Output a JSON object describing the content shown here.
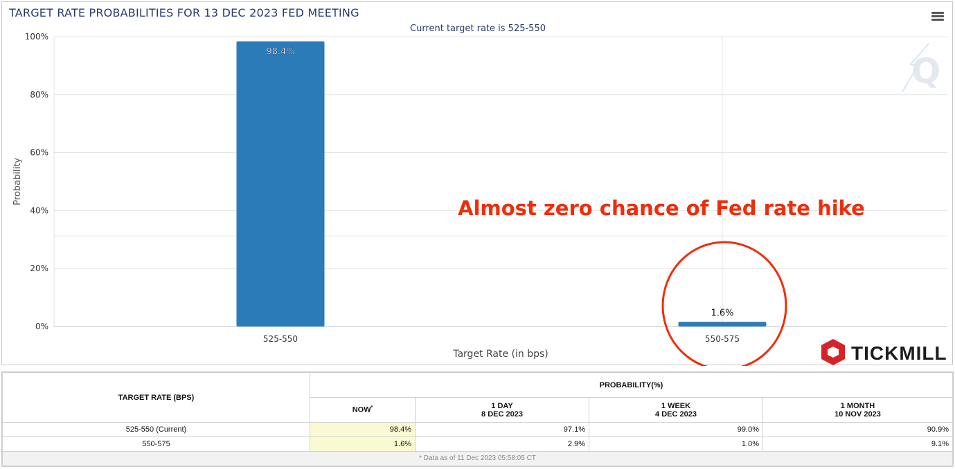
{
  "chart": {
    "title": "TARGET RATE PROBABILITIES FOR 13 DEC 2023 FED MEETING",
    "subtitle": "Current target rate is 525-550",
    "annotation": "Almost zero chance of Fed rate hike",
    "brand": "TICKMILL",
    "watermark": "Q",
    "colors": {
      "bar": "#2b7bb9",
      "annotation": "#f02d0a",
      "title": "#2a3b6e",
      "now_highlight": "#fafad2"
    }
  },
  "chart_data": {
    "type": "bar",
    "categories": [
      "525-550",
      "550-575"
    ],
    "values": [
      98.4,
      1.6
    ],
    "data_labels": [
      "98.4%",
      "1.6%"
    ],
    "title": "TARGET RATE PROBABILITIES FOR 13 DEC 2023 FED MEETING",
    "subtitle": "Current target rate is 525-550",
    "xlabel": "Target Rate (in bps)",
    "ylabel": "Probability",
    "ylim": [
      0,
      100
    ],
    "yticks": [
      "0%",
      "20%",
      "40%",
      "60%",
      "80%",
      "100%"
    ],
    "grid": true
  },
  "table": {
    "header_target": "TARGET RATE (BPS)",
    "header_prob": "PROBABILITY(%)",
    "columns": [
      {
        "line1": "NOW",
        "line2": "",
        "sup": "*"
      },
      {
        "line1": "1 DAY",
        "line2": "8 DEC 2023",
        "sup": ""
      },
      {
        "line1": "1 WEEK",
        "line2": "4 DEC 2023",
        "sup": ""
      },
      {
        "line1": "1 MONTH",
        "line2": "10 NOV 2023",
        "sup": ""
      }
    ],
    "rows": [
      {
        "rate": "525-550 (Current)",
        "values": [
          "98.4%",
          "97.1%",
          "99.0%",
          "90.9%"
        ]
      },
      {
        "rate": "550-575",
        "values": [
          "1.6%",
          "2.9%",
          "1.0%",
          "9.1%"
        ]
      }
    ],
    "footnote": "* Data as of 11 Dec 2023 05:58:05 CT"
  }
}
